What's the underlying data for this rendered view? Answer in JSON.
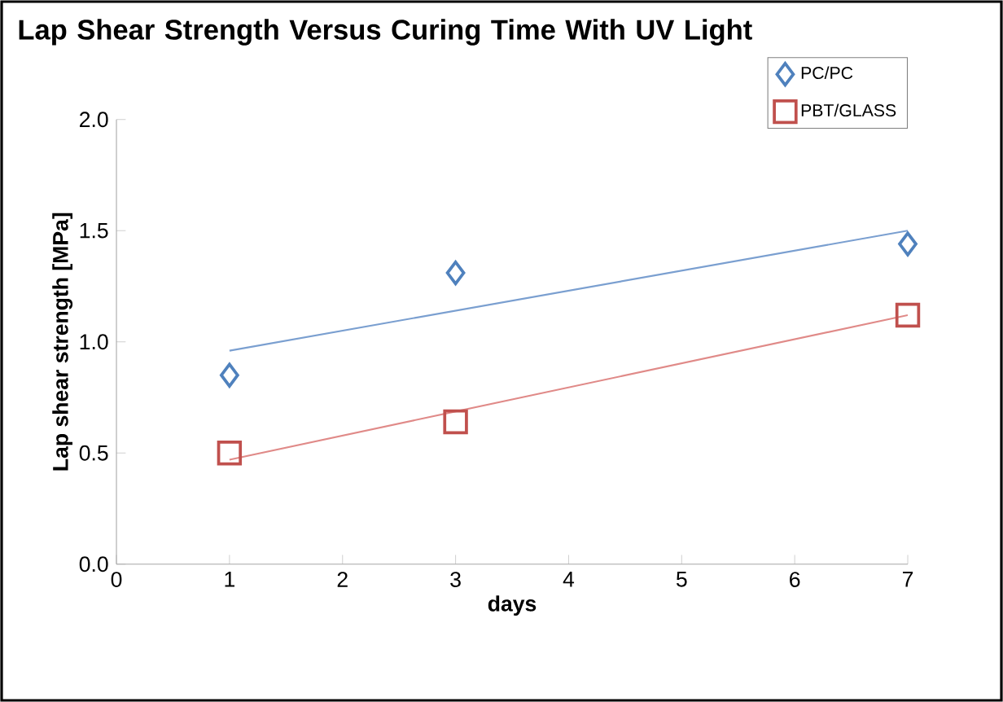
{
  "chart_data": {
    "type": "scatter",
    "title": "Lap Shear Strength Versus Curing Time With UV Light",
    "xlabel": "days",
    "ylabel": "Lap shear strength [MPa]",
    "xlim": [
      0,
      7
    ],
    "xticks": [
      0,
      1,
      2,
      3,
      4,
      5,
      6,
      7
    ],
    "ylim": [
      0,
      2
    ],
    "yticks": [
      {
        "value": 0,
        "label": "0.0"
      },
      {
        "value": 0.5,
        "label": "0.5"
      },
      {
        "value": 1,
        "label": "1.0"
      },
      {
        "value": 1.5,
        "label": "1.5"
      },
      {
        "value": 2,
        "label": "2.0"
      }
    ],
    "legend": "top right",
    "grid": false,
    "series": [
      {
        "name": "PC/PC",
        "color": "#4f81bd",
        "marker": "diamond",
        "x": [
          1,
          3,
          7
        ],
        "values": [
          0.85,
          1.31,
          1.44
        ]
      },
      {
        "name": "PBT/GLASS",
        "color": "#c0504d",
        "marker": "square",
        "x": [
          1,
          3,
          7
        ],
        "values": [
          0.5,
          0.64,
          1.12
        ]
      },
      {
        "type": "line",
        "color": "#7a9fd0",
        "marker": "none",
        "x": [
          1,
          7
        ],
        "values": [
          0.96,
          1.5
        ]
      },
      {
        "type": "line",
        "color": "#e08a88",
        "marker": "none",
        "x": [
          1,
          7
        ],
        "values": [
          0.47,
          1.12
        ]
      }
    ]
  }
}
